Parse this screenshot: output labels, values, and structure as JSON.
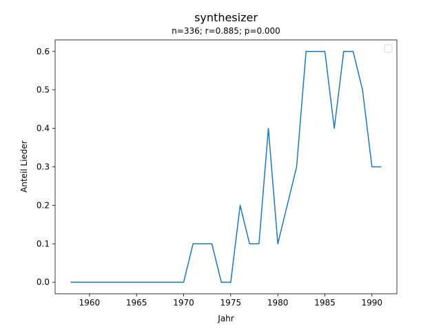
{
  "chart_data": {
    "type": "line",
    "title": "synthesizer",
    "subtitle": "n=336; r=0.885; p=0.000",
    "xlabel": "Jahr",
    "ylabel": "Anteil Lieder",
    "xlim": [
      1956.35,
      1992.65
    ],
    "ylim": [
      -0.03,
      0.63
    ],
    "xticks": [
      1960,
      1965,
      1970,
      1975,
      1980,
      1985,
      1990
    ],
    "xtick_labels": [
      "1960",
      "1965",
      "1970",
      "1975",
      "1980",
      "1985",
      "1990"
    ],
    "yticks": [
      0.0,
      0.1,
      0.2,
      0.3,
      0.4,
      0.5,
      0.6
    ],
    "ytick_labels": [
      "0.0",
      "0.1",
      "0.2",
      "0.3",
      "0.4",
      "0.5",
      "0.6"
    ],
    "grid": false,
    "legend": "top-right",
    "series": [
      {
        "color": "#1f77b4",
        "x": [
          1958,
          1959,
          1960,
          1961,
          1962,
          1963,
          1964,
          1965,
          1966,
          1967,
          1968,
          1969,
          1970,
          1971,
          1972,
          1973,
          1974,
          1975,
          1976,
          1977,
          1978,
          1979,
          1980,
          1981,
          1982,
          1983,
          1984,
          1985,
          1986,
          1987,
          1988,
          1989,
          1990,
          1991
        ],
        "y": [
          0.0,
          0.0,
          0.0,
          0.0,
          0.0,
          0.0,
          0.0,
          0.0,
          0.0,
          0.0,
          0.0,
          0.0,
          0.0,
          0.1,
          0.1,
          0.1,
          0.0,
          0.0,
          0.2,
          0.1,
          0.1,
          0.4,
          0.1,
          0.2,
          0.3,
          0.6,
          0.6,
          0.6,
          0.4,
          0.6,
          0.6,
          0.5,
          0.3,
          0.3
        ]
      }
    ]
  }
}
